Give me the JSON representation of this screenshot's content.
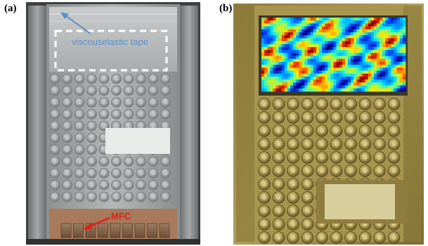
{
  "panels": [
    {
      "label": "(a)"
    },
    {
      "label": "(b)"
    }
  ],
  "annotations": {
    "tape_label": "viscouselastic tape",
    "mfc_label": "MFC"
  },
  "colors": {
    "tape_label": "#5b8fc7",
    "mfc_label": "#e0201a",
    "dashed_box": "#ffffff"
  },
  "grid": {
    "left_panel_cols": 10,
    "left_panel_rows": 11,
    "right_panel_cols": 10,
    "right_panel_rows": 11,
    "mfc_count": 9
  }
}
